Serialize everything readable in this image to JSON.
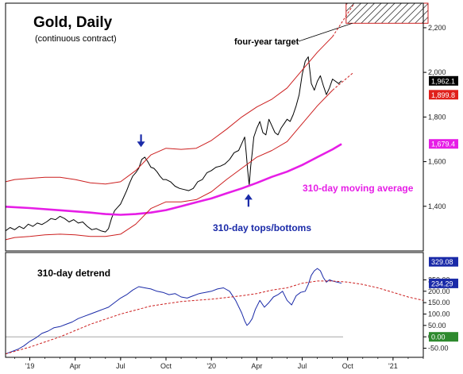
{
  "chart_data": [
    {
      "type": "line",
      "title": "Gold, Daily",
      "subtitle": "(continuous contract)",
      "xlabel": "",
      "ylabel": "",
      "x_ticks": [
        "'19",
        "Apr",
        "Jul",
        "Oct",
        "'20",
        "Apr",
        "Jul",
        "Oct",
        "'21"
      ],
      "x_tick_times": [
        0,
        3,
        6,
        9,
        12,
        15,
        18,
        21,
        24
      ],
      "y_ticks": [
        1400,
        1600,
        1800,
        2000,
        2200
      ],
      "y_tick_labels": [
        "1,400",
        "1,600",
        "1,800",
        "2,000",
        "2,200"
      ],
      "ylim": [
        1200,
        2310
      ],
      "grid": false,
      "legend": "none",
      "value_labels": [
        {
          "value": 1962.1,
          "text": "1,962.1",
          "color": "#000000"
        },
        {
          "value": 1899.8,
          "text": "1,899.8",
          "color": "#e0201b"
        },
        {
          "value": 1679.4,
          "text": "1,679.4",
          "color": "#e61ee6"
        }
      ],
      "annotations": [
        {
          "text": "four-year target"
        },
        {
          "text": "310-day moving average",
          "color": "#e61ee6"
        },
        {
          "text": "310-day tops/bottoms",
          "color": "#1a2aa8"
        }
      ],
      "target_box": {
        "y_low": 2220,
        "y_high": 2310
      },
      "arrows": [
        {
          "type": "down",
          "x": 7.35,
          "y": 1665,
          "color": "#1a2aa8"
        },
        {
          "type": "up",
          "x": 14.45,
          "y": 1455,
          "color": "#1a2aa8"
        }
      ],
      "series": [
        {
          "color": "#000000",
          "x": [
            -1.6,
            -1.3,
            -1.0,
            -0.7,
            -0.4,
            -0.1,
            0.2,
            0.5,
            0.8,
            1.1,
            1.4,
            1.7,
            2.0,
            2.3,
            2.6,
            2.9,
            3.2,
            3.5,
            3.8,
            4.1,
            4.4,
            4.7,
            5.0,
            5.2,
            5.4,
            5.6,
            5.8,
            6.0,
            6.2,
            6.4,
            6.6,
            6.8,
            7.0,
            7.2,
            7.4,
            7.6,
            7.8,
            8.0,
            8.2,
            8.4,
            8.6,
            8.8,
            9.0,
            9.3,
            9.6,
            9.9,
            10.2,
            10.5,
            10.8,
            11.1,
            11.4,
            11.7,
            12.0,
            12.3,
            12.6,
            12.9,
            13.2,
            13.5,
            13.8,
            14.0,
            14.2,
            14.3,
            14.4,
            14.5,
            14.6,
            14.7,
            14.8,
            15.0,
            15.2,
            15.4,
            15.6,
            15.8,
            16.0,
            16.2,
            16.4,
            16.6,
            16.8,
            17.0,
            17.2,
            17.4,
            17.6,
            17.8,
            18.0,
            18.2,
            18.4,
            18.6,
            18.8,
            19.0,
            19.2,
            19.4,
            19.6,
            19.8,
            20.0,
            20.2,
            20.4,
            20.6
          ],
          "y": [
            1290,
            1305,
            1295,
            1310,
            1300,
            1320,
            1310,
            1325,
            1318,
            1330,
            1345,
            1340,
            1355,
            1345,
            1330,
            1340,
            1325,
            1330,
            1310,
            1295,
            1300,
            1290,
            1285,
            1300,
            1345,
            1380,
            1395,
            1410,
            1440,
            1470,
            1505,
            1535,
            1550,
            1570,
            1610,
            1620,
            1600,
            1575,
            1570,
            1555,
            1535,
            1520,
            1520,
            1510,
            1490,
            1480,
            1475,
            1470,
            1480,
            1510,
            1520,
            1550,
            1560,
            1575,
            1580,
            1590,
            1610,
            1640,
            1650,
            1680,
            1710,
            1640,
            1560,
            1495,
            1580,
            1640,
            1710,
            1750,
            1780,
            1730,
            1720,
            1790,
            1760,
            1730,
            1720,
            1750,
            1770,
            1790,
            1780,
            1810,
            1850,
            1900,
            1990,
            2050,
            2070,
            1950,
            1920,
            1960,
            1985,
            1940,
            1900,
            1930,
            1970,
            1960,
            1950,
            1962
          ]
        },
        {
          "name": "310-day moving average",
          "color": "#e61ee6",
          "x": [
            -1.6,
            0,
            2,
            4,
            5,
            6,
            7,
            8,
            9,
            10,
            11,
            12,
            13,
            14,
            15,
            16,
            17,
            18,
            19,
            20,
            20.6
          ],
          "y": [
            1398,
            1392,
            1382,
            1372,
            1365,
            1362,
            1365,
            1372,
            1383,
            1400,
            1418,
            1435,
            1458,
            1480,
            1505,
            1532,
            1555,
            1585,
            1620,
            1655,
            1679
          ]
        },
        {
          "name": "310-day tops/bottoms",
          "color": "#cc1f1f",
          "x": [
            -1.6,
            -1,
            0,
            1,
            2,
            3,
            4,
            5,
            6,
            7,
            8,
            9,
            10,
            11,
            12,
            13,
            14,
            15,
            16,
            17,
            18,
            19,
            20
          ],
          "y": [
            1510,
            1520,
            1525,
            1530,
            1530,
            1520,
            1505,
            1500,
            1510,
            1560,
            1630,
            1660,
            1655,
            1660,
            1695,
            1745,
            1800,
            1845,
            1880,
            1930,
            2010,
            2090,
            2160
          ]
        },
        {
          "name": "310-day tops/bottoms",
          "color": "#cc1f1f",
          "x": [
            -1.6,
            -1,
            0,
            1,
            2,
            3,
            4,
            5,
            6,
            7,
            8,
            9,
            10,
            11,
            12,
            13,
            14,
            15,
            16,
            17,
            18,
            19,
            20
          ],
          "y": [
            1250,
            1260,
            1265,
            1272,
            1275,
            1272,
            1265,
            1265,
            1275,
            1320,
            1390,
            1420,
            1420,
            1430,
            1465,
            1520,
            1570,
            1620,
            1650,
            1690,
            1770,
            1850,
            1920
          ]
        },
        {
          "color": "#cc1f1f",
          "style": "dashed",
          "x": [
            20,
            21.4
          ],
          "y": [
            2160,
            2305
          ]
        },
        {
          "color": "#cc1f1f",
          "style": "dashed",
          "x": [
            20,
            21.4
          ],
          "y": [
            1920,
            2000
          ]
        }
      ]
    },
    {
      "type": "line",
      "title": "310-day detrend",
      "xlabel": "",
      "ylabel": "",
      "x_ticks": [
        "'19",
        "Apr",
        "Jul",
        "Oct",
        "'20",
        "Apr",
        "Jul",
        "Oct",
        "'21"
      ],
      "x_tick_times": [
        0,
        3,
        6,
        9,
        12,
        15,
        18,
        21,
        24
      ],
      "y_ticks": [
        250,
        200,
        150,
        100,
        50,
        0,
        -50
      ],
      "y_tick_labels": [
        "250.00",
        "200.00",
        "150.00",
        "100.00",
        "50.00",
        "0.00",
        "-50.00"
      ],
      "ylim": [
        -90,
        370
      ],
      "grid": false,
      "legend": "none",
      "value_labels": [
        {
          "value": 329.08,
          "text": "329.08",
          "color": "#1a2aa8"
        },
        {
          "value": 234.29,
          "text": "234.29",
          "color": "#1a2aa8"
        },
        {
          "value": 0,
          "text": "0.00",
          "color": "#2e8a2e"
        }
      ],
      "zero_line": 0,
      "series": [
        {
          "color": "#1a2aa8",
          "x": [
            -1.6,
            -1.2,
            -0.8,
            -0.4,
            0,
            0.4,
            0.8,
            1.2,
            1.6,
            2,
            2.4,
            2.8,
            3.2,
            3.6,
            4,
            4.4,
            4.8,
            5.2,
            5.6,
            6,
            6.4,
            6.8,
            7.2,
            7.6,
            8,
            8.4,
            8.8,
            9.2,
            9.6,
            10,
            10.4,
            10.8,
            11.2,
            11.6,
            12,
            12.4,
            12.8,
            13.2,
            13.6,
            14,
            14.2,
            14.35,
            14.5,
            14.7,
            14.9,
            15.2,
            15.5,
            15.8,
            16.1,
            16.4,
            16.7,
            17,
            17.3,
            17.6,
            17.9,
            18.2,
            18.4,
            18.6,
            18.8,
            19,
            19.2,
            19.4,
            19.6,
            19.8,
            20,
            20.3,
            20.6
          ],
          "y": [
            -75,
            -65,
            -55,
            -40,
            -20,
            -5,
            15,
            25,
            40,
            45,
            55,
            65,
            80,
            90,
            100,
            110,
            120,
            130,
            150,
            170,
            185,
            205,
            220,
            215,
            210,
            200,
            195,
            185,
            190,
            175,
            170,
            180,
            190,
            195,
            200,
            210,
            215,
            200,
            160,
            105,
            70,
            50,
            60,
            80,
            120,
            160,
            130,
            150,
            175,
            185,
            200,
            160,
            140,
            180,
            195,
            200,
            230,
            270,
            290,
            300,
            290,
            260,
            240,
            250,
            245,
            240,
            235
          ]
        },
        {
          "color": "#cc1f1f",
          "style": "dashed",
          "x": [
            -1.6,
            0,
            2,
            4,
            6,
            8,
            10,
            12,
            14,
            15,
            16,
            17,
            18,
            19,
            20,
            21,
            22,
            23,
            24,
            25,
            26
          ],
          "y": [
            -75,
            -45,
            0,
            55,
            100,
            135,
            155,
            165,
            180,
            190,
            205,
            215,
            235,
            245,
            245,
            240,
            230,
            215,
            195,
            175,
            160
          ]
        }
      ]
    }
  ]
}
